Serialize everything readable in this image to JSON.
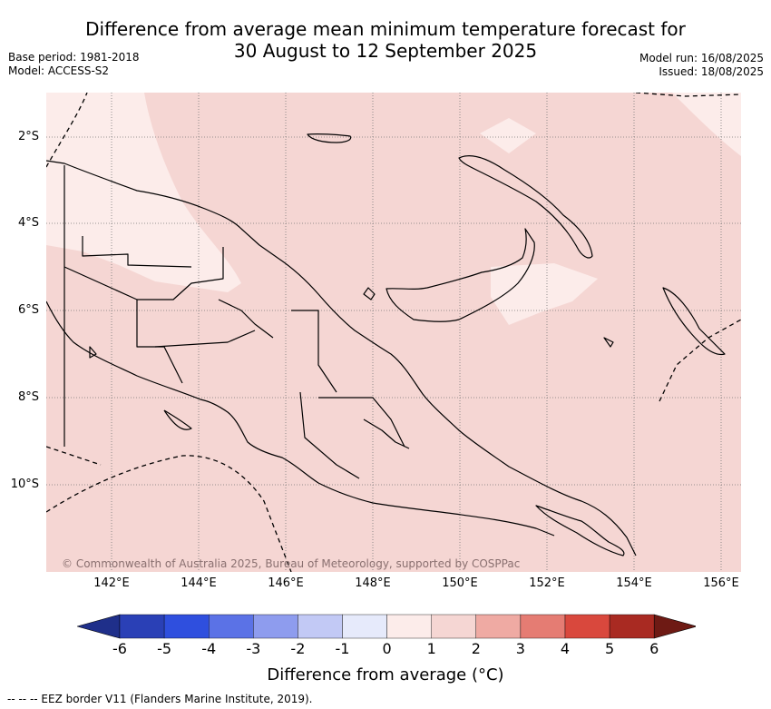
{
  "title": {
    "line1": "Difference from average mean minimum temperature forecast for",
    "line2": "30 August to 12 September 2025"
  },
  "meta": {
    "base_period": "Base period: 1981-2018",
    "model": "Model: ACCESS-S2",
    "model_run": "Model run: 16/08/2025",
    "issued": "Issued: 18/08/2025"
  },
  "map": {
    "lat_labels": [
      "2°S",
      "4°S",
      "6°S",
      "8°S",
      "10°S"
    ],
    "lon_labels": [
      "142°E",
      "144°E",
      "146°E",
      "148°E",
      "150°E",
      "152°E",
      "154°E",
      "156°E"
    ],
    "copyright": "© Commonwealth of Australia 2025, Bureau of Meteorology, supported by COSPPac",
    "background_color": "#f5d6d3",
    "light_color": "#fcecea"
  },
  "colorbar": {
    "label": "Difference from average (°C)",
    "ticks": [
      "-6",
      "-5",
      "-4",
      "-3",
      "-2",
      "-1",
      "0",
      "1",
      "2",
      "3",
      "4",
      "5",
      "6"
    ],
    "colors": [
      "#1f2f8a",
      "#2a40b6",
      "#2f4fde",
      "#5b72e6",
      "#8e9cee",
      "#c2c9f5",
      "#e6eafb",
      "#fcecea",
      "#f5d6d3",
      "#efaaa3",
      "#e57c73",
      "#d9483d",
      "#a92a22",
      "#6e1a14"
    ]
  },
  "footnote": "-- -- -- EEZ border V11 (Flanders Marine Institute, 2019)."
}
